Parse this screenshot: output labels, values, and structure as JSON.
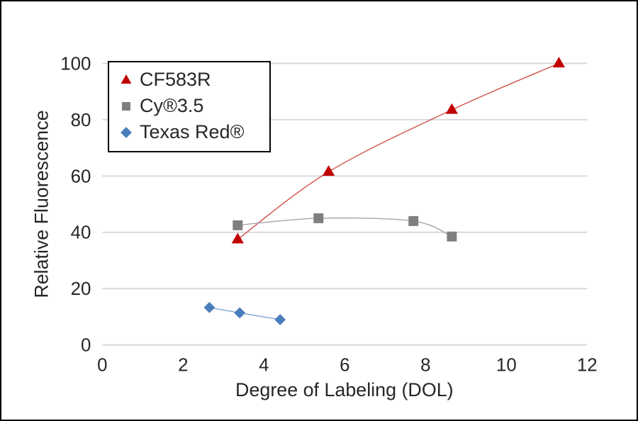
{
  "chart_data": {
    "type": "scatter",
    "title": "",
    "xlabel": "Degree of Labeling (DOL)",
    "ylabel": "Relative Fluorescence",
    "xlim": [
      0,
      12
    ],
    "ylim": [
      0,
      100
    ],
    "x_ticks": [
      "0",
      "2",
      "4",
      "6",
      "8",
      "10",
      "12"
    ],
    "y_ticks": [
      "0",
      "20",
      "40",
      "60",
      "80",
      "100"
    ],
    "grid": "horizontal-only",
    "gridline_color": "#d9d9d9",
    "text_color": "#262626",
    "legend_position": "top-left-inside",
    "series": [
      {
        "name": "CF583R",
        "marker": "triangle",
        "color": "#c00000",
        "line_color": "#d0524d",
        "trendline": true,
        "points": [
          [
            3.35,
            37.5
          ],
          [
            5.6,
            61.5
          ],
          [
            8.65,
            83.5
          ],
          [
            11.3,
            100
          ]
        ]
      },
      {
        "name": "Cy®3.5",
        "marker": "square",
        "color": "#7f7f7f",
        "line_color": "#a6a6a6",
        "trendline": true,
        "points": [
          [
            3.35,
            42.5
          ],
          [
            5.35,
            45
          ],
          [
            7.7,
            44
          ],
          [
            8.65,
            38.5
          ]
        ]
      },
      {
        "name": "Texas Red®",
        "marker": "diamond",
        "color": "#4a7ebb",
        "line_color": "#7ca3d4",
        "trendline": true,
        "points": [
          [
            2.65,
            13.3
          ],
          [
            3.4,
            11.4
          ],
          [
            4.4,
            9
          ]
        ]
      }
    ]
  }
}
